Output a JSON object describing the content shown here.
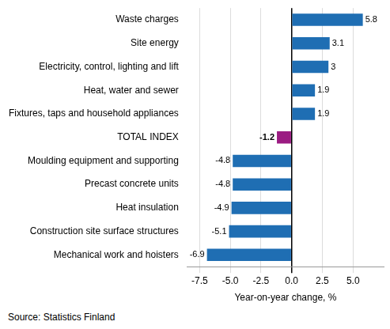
{
  "chart_data": {
    "type": "bar",
    "orientation": "horizontal",
    "categories": [
      "Waste charges",
      "Site energy",
      "Electricity, control, lighting and lift",
      "Heat, water and sewer",
      "Fixtures, taps and household appliances",
      "TOTAL INDEX",
      "Moulding equipment and supporting",
      "Precast concrete units",
      "Heat insulation",
      "Construction site surface structures",
      "Mechanical work and hoisters"
    ],
    "values": [
      5.8,
      3.1,
      3.0,
      1.9,
      1.9,
      -1.2,
      -4.8,
      -4.8,
      -4.9,
      -5.1,
      -6.9
    ],
    "colors": [
      "#1f6eb3",
      "#1f6eb3",
      "#1f6eb3",
      "#1f6eb3",
      "#1f6eb3",
      "#9b1b82",
      "#1f6eb3",
      "#1f6eb3",
      "#1f6eb3",
      "#1f6eb3",
      "#1f6eb3"
    ],
    "x_label": "Year-on-year change, %",
    "source": "Source: Statistics Finland",
    "xlim": [
      -8.5,
      7.5
    ],
    "xticks": [
      -7.5,
      {
        "value": -5,
        "label": "-5.0"
      },
      -2.5,
      {
        "value": 0,
        "label": "0.0"
      },
      2.5,
      {
        "value": 5,
        "label": "5.0"
      }
    ],
    "grid": true,
    "data_labels": true
  }
}
